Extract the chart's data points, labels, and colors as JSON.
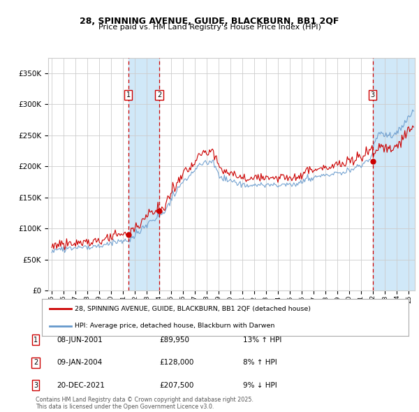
{
  "title1": "28, SPINNING AVENUE, GUIDE, BLACKBURN, BB1 2QF",
  "title2": "Price paid vs. HM Land Registry's House Price Index (HPI)",
  "ylim": [
    0,
    375000
  ],
  "yticks": [
    0,
    50000,
    100000,
    150000,
    200000,
    250000,
    300000,
    350000
  ],
  "ytick_labels": [
    "£0",
    "£50K",
    "£100K",
    "£150K",
    "£200K",
    "£250K",
    "£300K",
    "£350K"
  ],
  "xstart": 1994.7,
  "xend": 2025.5,
  "xtick_years": [
    1995,
    1996,
    1997,
    1998,
    1999,
    2000,
    2001,
    2002,
    2003,
    2004,
    2005,
    2006,
    2007,
    2008,
    2009,
    2010,
    2011,
    2012,
    2013,
    2014,
    2015,
    2016,
    2017,
    2018,
    2019,
    2020,
    2021,
    2022,
    2023,
    2024,
    2025
  ],
  "xtick_labels": [
    "95",
    "96",
    "97",
    "98",
    "99",
    "00",
    "01",
    "02",
    "03",
    "04",
    "05",
    "06",
    "07",
    "08",
    "09",
    "10",
    "11",
    "12",
    "13",
    "14",
    "15",
    "16",
    "17",
    "18",
    "19",
    "20",
    "21",
    "22",
    "23",
    "24",
    "25"
  ],
  "sale_dates": [
    2001.44,
    2004.03,
    2021.97
  ],
  "sale_prices": [
    89950,
    128000,
    207500
  ],
  "sale_labels": [
    "1",
    "2",
    "3"
  ],
  "sale_pcts": [
    "13%",
    "8%",
    "9%"
  ],
  "sale_dirs": [
    "↑",
    "↑",
    "↓"
  ],
  "sale_date_strs": [
    "08-JUN-2001",
    "09-JAN-2004",
    "20-DEC-2021"
  ],
  "sale_price_strs": [
    "£89,950",
    "£128,000",
    "£207,500"
  ],
  "legend_line1": "28, SPINNING AVENUE, GUIDE, BLACKBURN, BB1 2QF (detached house)",
  "legend_line2": "HPI: Average price, detached house, Blackburn with Darwen",
  "footer": "Contains HM Land Registry data © Crown copyright and database right 2025.\nThis data is licensed under the Open Government Licence v3.0.",
  "line_color_red": "#cc0000",
  "line_color_blue": "#6699cc",
  "shade_color": "#d0e8f8",
  "grid_color": "#cccccc",
  "bg_color": "#ffffff"
}
